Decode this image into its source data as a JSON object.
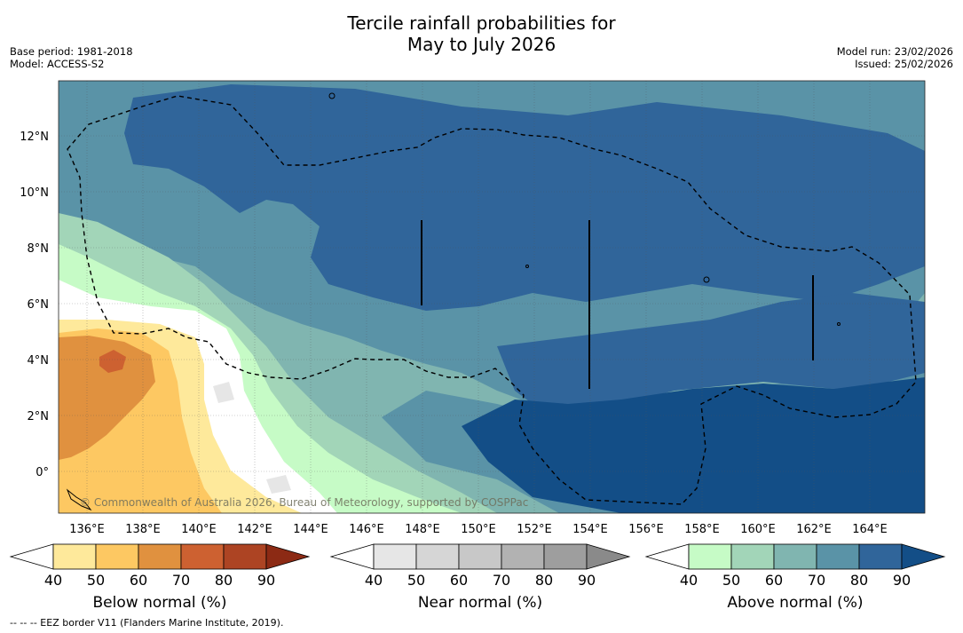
{
  "title": {
    "line1": "Tercile rainfall probabilities for",
    "line2": "May to July 2026"
  },
  "meta": {
    "base_period": "Base period: 1981-2018",
    "model": "Model: ACCESS-S2",
    "model_run": "Model run: 23/02/2026",
    "issued": "Issued: 25/02/2026"
  },
  "map": {
    "lat_labels": [
      "12°N",
      "10°N",
      "8°N",
      "6°N",
      "4°N",
      "2°N",
      "0°"
    ],
    "lon_labels": [
      "136°E",
      "138°E",
      "140°E",
      "142°E",
      "144°E",
      "146°E",
      "148°E",
      "150°E",
      "152°E",
      "154°E",
      "156°E",
      "158°E",
      "160°E",
      "162°E",
      "164°E"
    ],
    "copyright": "© Commonwealth of Australia 2026, Bureau of Meteorology, supported by COSPPac"
  },
  "legends": [
    {
      "label": "Below normal (%)",
      "ticks": [
        "40",
        "50",
        "60",
        "70",
        "80",
        "90"
      ],
      "colors": [
        "#ffffff",
        "#fee99b",
        "#fdc862",
        "#e0913f",
        "#cd6131",
        "#ad4423",
        "#8c2a14"
      ]
    },
    {
      "label": "Near normal (%)",
      "ticks": [
        "40",
        "50",
        "60",
        "70",
        "80",
        "90"
      ],
      "colors": [
        "#ffffff",
        "#e6e6e6",
        "#d6d6d6",
        "#c8c8c8",
        "#b2b2b2",
        "#9e9e9e",
        "#8a8a8a"
      ]
    },
    {
      "label": "Above normal (%)",
      "ticks": [
        "40",
        "50",
        "60",
        "70",
        "80",
        "90"
      ],
      "colors": [
        "#ffffff",
        "#c6fbc6",
        "#a2d5b8",
        "#80b5b0",
        "#5a93a7",
        "#30659a",
        "#134e87"
      ]
    }
  ],
  "footnote": "--  --  -- EEZ border V11 (Flanders Marine Institute, 2019)."
}
